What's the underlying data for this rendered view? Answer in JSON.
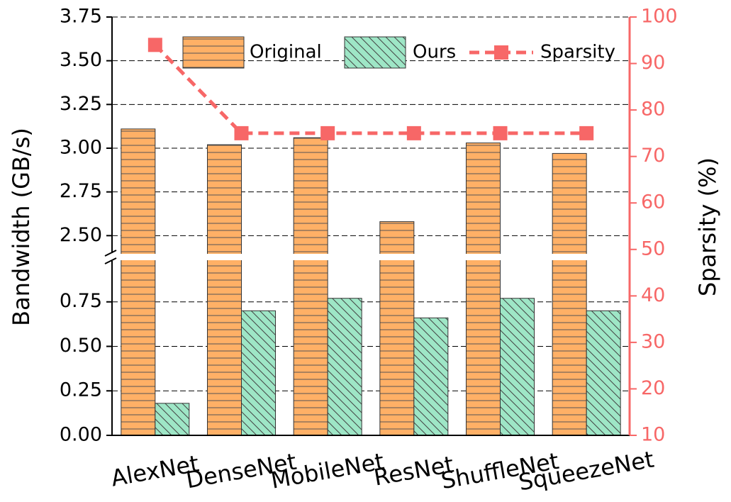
{
  "chart_data": {
    "type": "bar",
    "y_label": "Bandwidth (GB/s)",
    "y2_label": "Sparsity (%)",
    "categories": [
      "AlexNet",
      "DenseNet",
      "MobileNet",
      "ResNet",
      "ShuffleNet",
      "SqueezeNet"
    ],
    "series": [
      {
        "name": "Original",
        "color": "#ffb066",
        "values": [
          3.11,
          3.02,
          3.06,
          2.58,
          3.03,
          2.97
        ]
      },
      {
        "name": "Ours",
        "color": "#9ee6c6",
        "values": [
          0.18,
          0.7,
          0.77,
          0.66,
          0.77,
          0.7
        ]
      },
      {
        "name": "Sparsity",
        "color": "#f76767",
        "type": "line",
        "axis": "y2",
        "values": [
          94,
          75,
          75,
          75,
          75,
          75
        ]
      }
    ],
    "ylim": [
      0,
      3.75
    ],
    "ybreak": [
      0.98,
      2.4
    ],
    "yticks": [
      {
        "value": 0,
        "label": "0.00"
      },
      0.25,
      {
        "value": 0.5,
        "label": "0.50"
      },
      0.75,
      {
        "value": 2.5,
        "label": "2.50"
      },
      2.75,
      {
        "value": 3,
        "label": "3.00"
      },
      3.25,
      {
        "value": 3.5,
        "label": "3.50"
      },
      3.75
    ],
    "y2lim": [
      10,
      100
    ],
    "y2ticks": [
      10,
      20,
      30,
      40,
      50,
      60,
      70,
      80,
      90,
      100
    ],
    "grid": true,
    "legend": "top"
  }
}
